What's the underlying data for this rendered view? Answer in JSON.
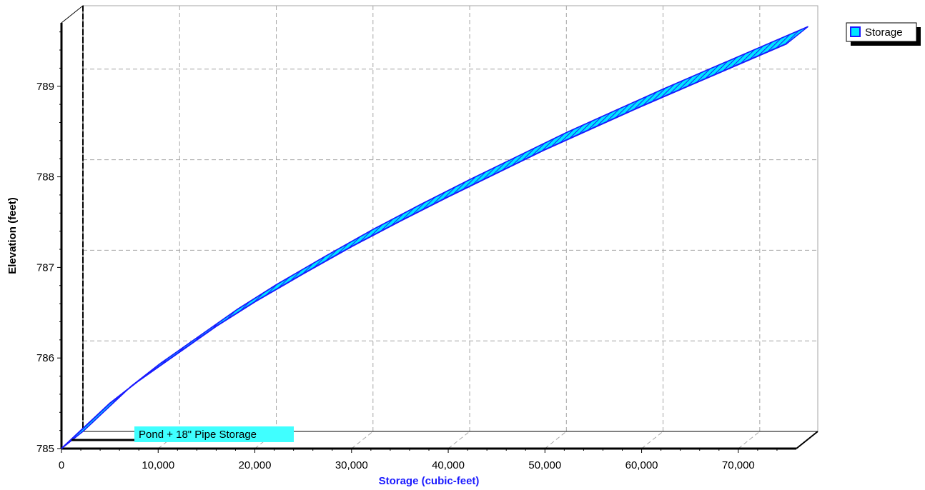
{
  "chart_data": {
    "type": "area",
    "xlabel": "Storage (cubic-feet)",
    "ylabel": "Elevation  (feet)",
    "xlim": [
      0,
      76000
    ],
    "ylim": [
      785,
      789.7
    ],
    "x_ticks": [
      0,
      10000,
      20000,
      30000,
      40000,
      50000,
      60000,
      70000
    ],
    "x_tick_labels": [
      "0",
      "10,000",
      "20,000",
      "30,000",
      "40,000",
      "50,000",
      "60,000",
      "70,000"
    ],
    "y_ticks": [
      785,
      786,
      787,
      788,
      789
    ],
    "y_tick_labels": [
      "785",
      "786",
      "787",
      "788",
      "789"
    ],
    "grid": true,
    "legend_position": "top-right",
    "series": [
      {
        "name": "Storage",
        "color": "#00e5ff",
        "edge_color": "#1a1aff",
        "x": [
          0,
          2000,
          5000,
          8000,
          12000,
          16000,
          20000,
          25000,
          30000,
          35000,
          40000,
          45000,
          50000,
          55000,
          60000,
          65000,
          70000,
          75000
        ],
        "y": [
          785.0,
          785.2,
          785.5,
          785.75,
          786.05,
          786.35,
          786.62,
          786.93,
          787.23,
          787.51,
          787.78,
          788.04,
          788.3,
          788.54,
          788.78,
          789.01,
          789.24,
          789.47
        ]
      }
    ],
    "annotation": {
      "text": "Pond + 18\" Pipe Storage",
      "color": "#40ffff"
    },
    "colors": {
      "grid": "#a6a6a6",
      "x_axis_title": "#1a1aff",
      "y_axis_title": "#000000",
      "fill": "#00e5ff",
      "hatch": "#1a1aff"
    }
  }
}
